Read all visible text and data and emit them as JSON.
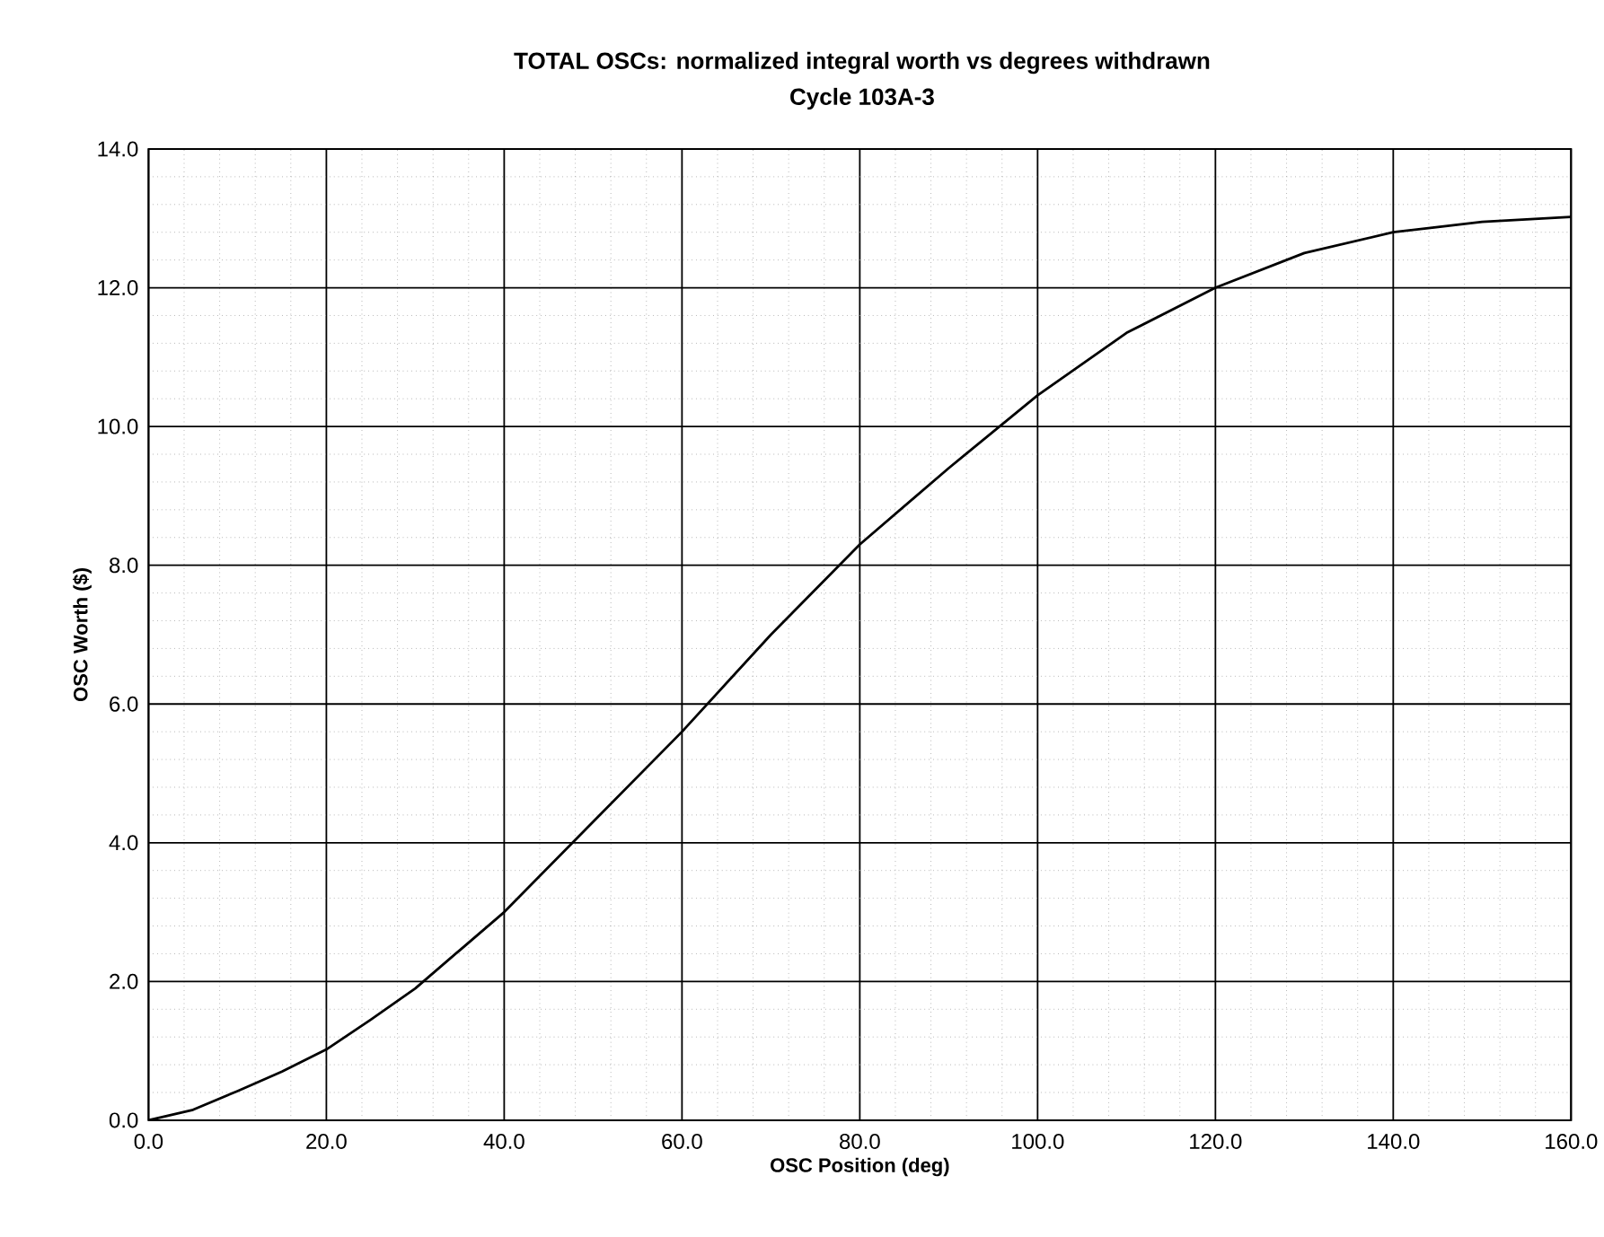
{
  "chart_data": {
    "type": "line",
    "title": "TOTAL OSCs: normalized integral worth vs degrees withdrawn",
    "subtitle": "Cycle 103A-3",
    "xlabel": "OSC Position (deg)",
    "ylabel": "OSC Worth ($)",
    "x": [
      0,
      5,
      10,
      15,
      20,
      25,
      30,
      35,
      40,
      50,
      60,
      70,
      80,
      90,
      100,
      110,
      120,
      130,
      140,
      150,
      160
    ],
    "series": [
      {
        "color": "#000000",
        "values": [
          0,
          0.15,
          0.42,
          0.7,
          1.02,
          1.45,
          1.9,
          2.45,
          3.0,
          4.3,
          5.6,
          7.0,
          8.3,
          9.4,
          10.45,
          11.35,
          12.0,
          12.5,
          12.8,
          12.95,
          13.02
        ]
      }
    ],
    "xlim": [
      0,
      160
    ],
    "ylim": [
      0,
      14
    ],
    "xticks": [
      {
        "value": 0,
        "label": "0.0"
      },
      {
        "value": 20,
        "label": "20.0"
      },
      {
        "value": 40,
        "label": "40.0"
      },
      {
        "value": 60,
        "label": "60.0"
      },
      {
        "value": 80,
        "label": "80.0"
      },
      {
        "value": 100,
        "label": "100.0"
      },
      {
        "value": 120,
        "label": "120.0"
      },
      {
        "value": 140,
        "label": "140.0"
      },
      {
        "value": 160,
        "label": "160.0"
      }
    ],
    "yticks": [
      {
        "value": 0,
        "label": "0.0"
      },
      {
        "value": 2,
        "label": "2.0"
      },
      {
        "value": 4,
        "label": "4.0"
      },
      {
        "value": 6,
        "label": "6.0"
      },
      {
        "value": 8,
        "label": "8.0"
      },
      {
        "value": 10,
        "label": "10.0"
      },
      {
        "value": 12,
        "label": "12.0"
      },
      {
        "value": 14,
        "label": "14.0"
      }
    ],
    "grid": true,
    "marker": "none",
    "line_style": "solid"
  }
}
